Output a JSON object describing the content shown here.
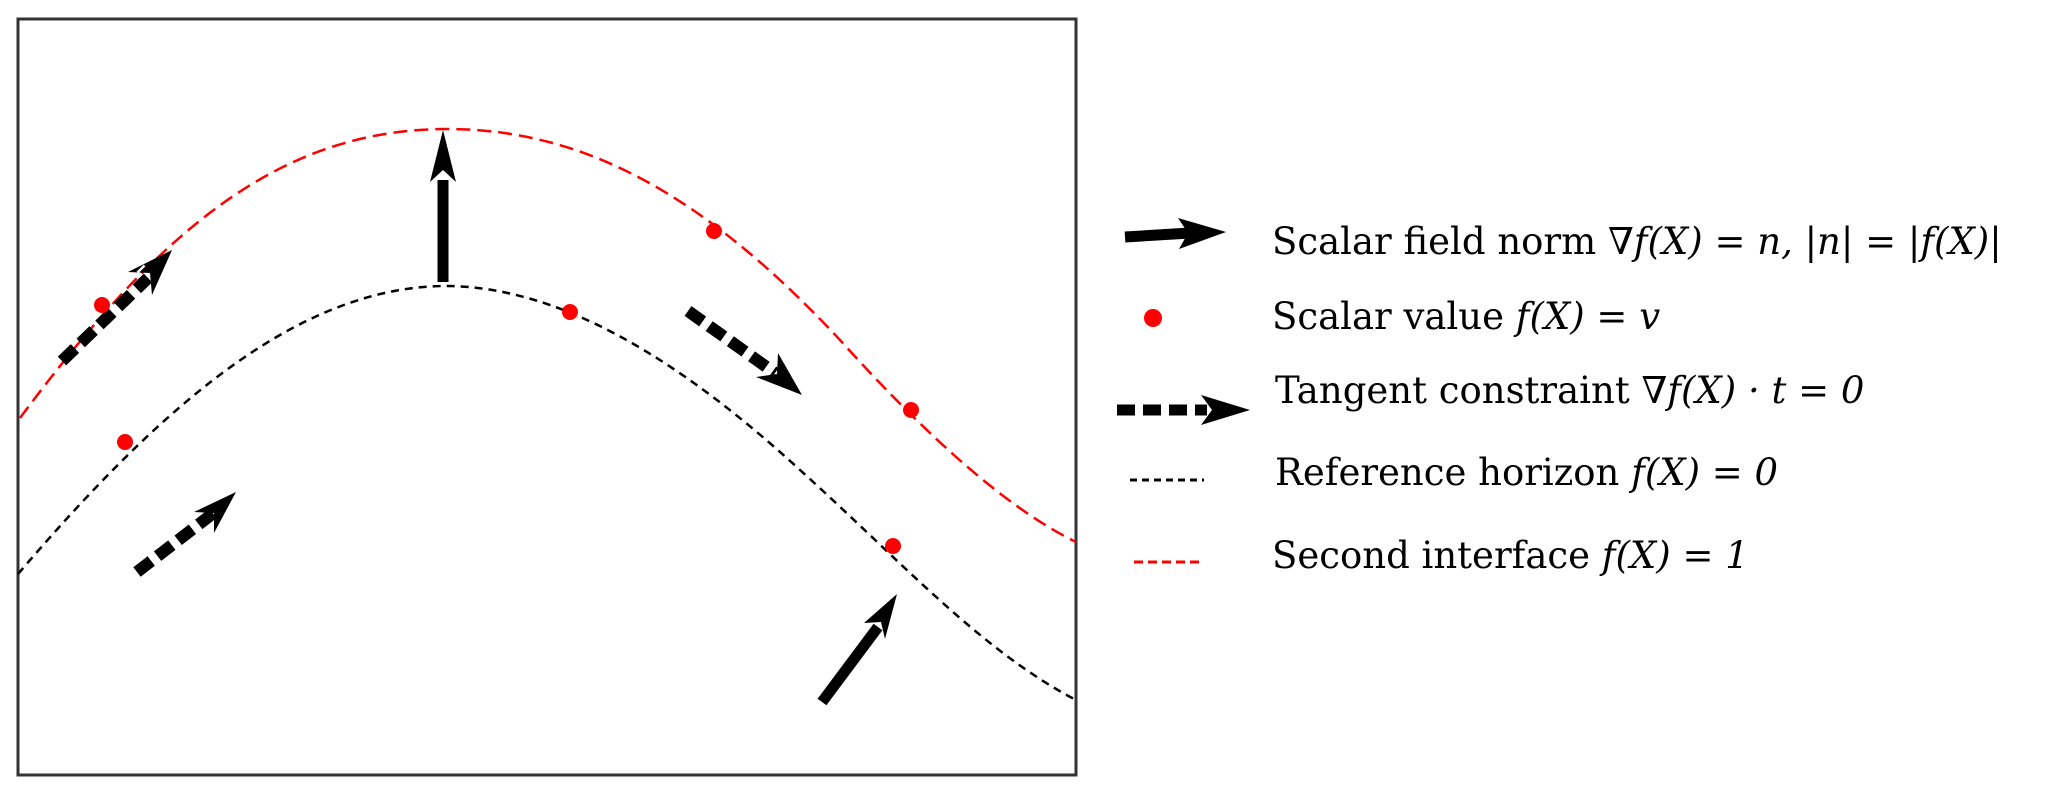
{
  "legend": {
    "normal": {
      "label": "Scalar field norm ",
      "math": "∇f(X) = n, |n| = |f(X)|"
    },
    "value": {
      "label": "Scalar value ",
      "math": "f(X) = v"
    },
    "tangent": {
      "label": "Tangent constraint ",
      "math": "∇f(X) · t = 0"
    },
    "reference": {
      "label": "Reference horizon ",
      "math": "f(X) = 0"
    },
    "second": {
      "label": "Second interface ",
      "math": "f(X) = 1"
    }
  },
  "colors": {
    "axes": "#333333",
    "reference_curve": "#000000",
    "second_curve": "#ff0000",
    "value_point": "#ff0000",
    "arrow": "#000000"
  }
}
